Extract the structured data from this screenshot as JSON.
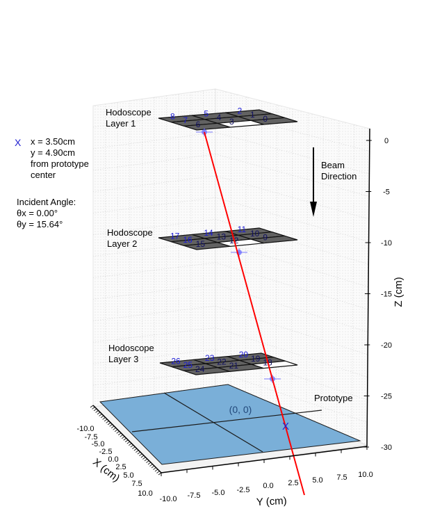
{
  "chart_data": {
    "type": "scatter",
    "projection": "3d",
    "hit_marker": "X",
    "hit_info": {
      "x_text": "x = 3.50cm",
      "y_text": "y = 4.90cm",
      "from_text": "from prototype",
      "center_text": "center"
    },
    "angle_info": {
      "heading": "Incident Angle:",
      "theta_x": "θx = 0.00°",
      "theta_y": "θy = 15.64°"
    },
    "beam_label_1": "Beam",
    "beam_label_2": "Direction",
    "prototype_label": "Prototype",
    "origin_label": "(0, 0)",
    "axes": {
      "xlabel": "X (cm)",
      "ylabel": "Y (cm)",
      "zlabel": "Z (cm)",
      "xticks": [
        "-10.0",
        "-7.5",
        "-5.0",
        "-2.5",
        "0.0",
        "2.5",
        "5.0",
        "7.5",
        "10.0"
      ],
      "yticks": [
        "-10.0",
        "-7.5",
        "-5.0",
        "-2.5",
        "0.0",
        "2.5",
        "5.0",
        "7.5",
        "10.0"
      ],
      "zticks": [
        "0",
        "-5",
        "-10",
        "-15",
        "-20",
        "-25",
        "-30"
      ],
      "xlim": [
        -10,
        10
      ],
      "ylim": [
        -10,
        10
      ],
      "zlim": [
        -30,
        0
      ],
      "grid": true
    },
    "hodoscope_layers": [
      {
        "label_1": "Hodoscope",
        "label_2": "Layer 1",
        "z": 0,
        "ids": [
          "0",
          "1",
          "2",
          "3",
          "4",
          "5",
          "6",
          "7",
          "8"
        ],
        "hit_pad": "3",
        "hit_x": 3.5,
        "hit_y": 0.0
      },
      {
        "label_1": "Hodoscope",
        "label_2": "Layer 2",
        "z": -10,
        "ids": [
          "9",
          "10",
          "11",
          "12",
          "13",
          "14",
          "15",
          "16",
          "17"
        ],
        "hit_pad": "12",
        "hit_x": 3.5,
        "hit_y": 2.8
      },
      {
        "label_1": "Hodoscope",
        "label_2": "Layer 3",
        "z": -22.5,
        "ids": [
          "18",
          "19",
          "20",
          "21",
          "22",
          "23",
          "24",
          "25",
          "26"
        ],
        "hit_pad": "18",
        "hit_x": 3.5,
        "hit_y": 6.3
      }
    ],
    "track": {
      "x": [
        3.5,
        3.5
      ],
      "y": [
        0.0,
        9.4
      ],
      "z": [
        0,
        -33.6
      ]
    },
    "prototype_hit": {
      "x": 3.5,
      "y": 4.9,
      "z": -27.5
    },
    "colors": {
      "pad_dark": "#5a5a5a",
      "pad_hit": "#ffffff",
      "prototype_face": "#7aafd8",
      "track": "#ff0000",
      "marker": "#1f1fd0",
      "id_text": "#1a1ad6"
    }
  }
}
